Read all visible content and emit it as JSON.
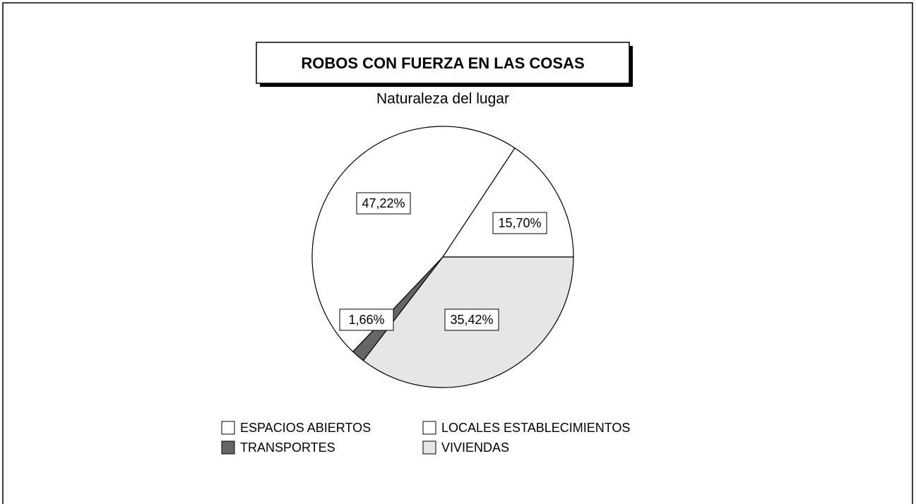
{
  "chart_data": {
    "type": "pie",
    "title": "ROBOS CON FUERZA EN LAS COSAS",
    "subtitle": "Naturaleza del lugar",
    "categories": [
      "ESPACIOS ABIERTOS",
      "LOCALES ESTABLECIMIENTOS",
      "TRANSPORTES",
      "VIVIENDAS"
    ],
    "values": [
      47.22,
      15.7,
      1.66,
      35.42
    ],
    "value_labels": [
      "47,22%",
      "15,70%",
      "1,66%",
      "35,42%"
    ],
    "colors": [
      "#ffffff",
      "#ffffff",
      "#666666",
      "#e6e6e6"
    ]
  }
}
